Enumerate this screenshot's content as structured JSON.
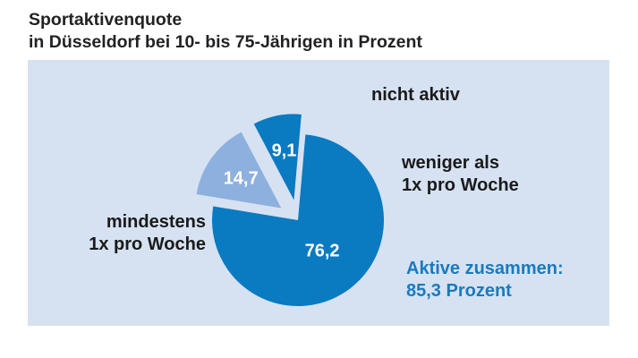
{
  "title": {
    "line1": "Sportaktivenquote",
    "line2": "in Düsseldorf bei 10- bis 75-Jährigen in Prozent"
  },
  "chart_data": {
    "type": "pie",
    "title": "Sportaktivenquote in Düsseldorf bei 10- bis 75-Jährigen in Prozent",
    "unit": "%",
    "slices": [
      {
        "label": "mindestens 1x pro Woche",
        "value": 76.2,
        "display": "76,2",
        "color": "#0a7ac1",
        "exploded": false
      },
      {
        "label": "nicht aktiv",
        "value": 14.7,
        "display": "14,7",
        "color": "#8db0df",
        "exploded": true
      },
      {
        "label": "weniger als 1x pro Woche",
        "value": 9.1,
        "display": "9,1",
        "color": "#0a7ac1",
        "exploded": true
      }
    ],
    "labels": {
      "mindestens": [
        "mindestens",
        "1x pro Woche"
      ],
      "nicht_aktiv": [
        "nicht aktiv"
      ],
      "weniger": [
        "weniger als",
        "1x pro Woche"
      ]
    },
    "summary": [
      "Aktive zusammen:",
      "85,3 Prozent"
    ]
  },
  "colors": {
    "panel": "#d6e2f1",
    "accent": "#1a7abf"
  }
}
